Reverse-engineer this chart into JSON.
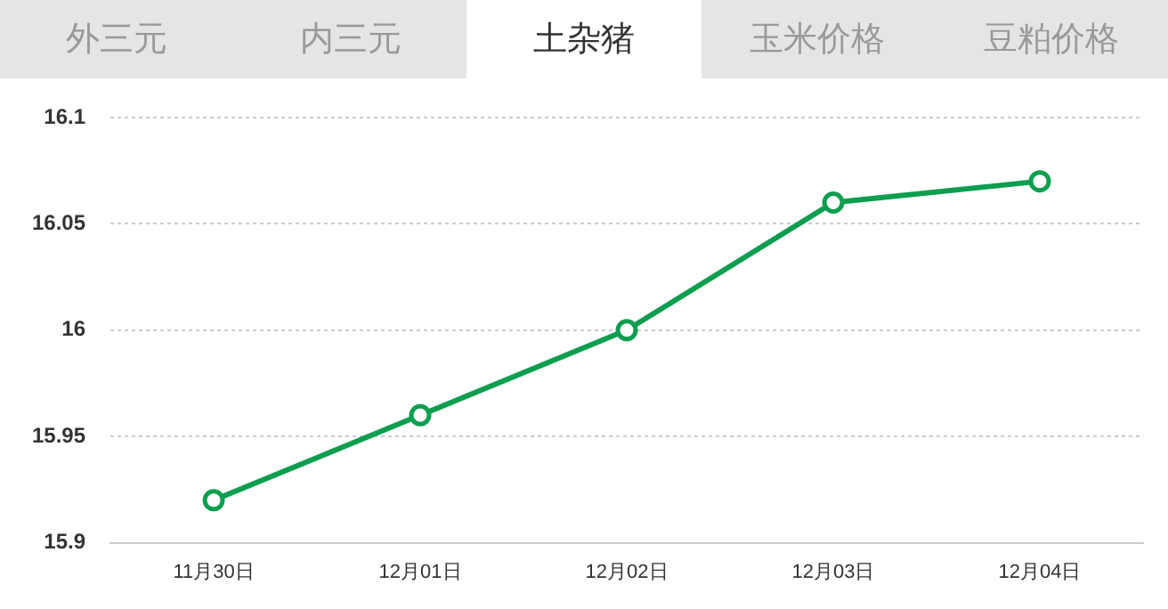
{
  "chart_data": {
    "type": "line",
    "title": "土杂猪",
    "annotations": [
      "外三元",
      "内三元",
      "玉米价格",
      "豆粕价格"
    ],
    "categories": [
      "11月30日",
      "12月01日",
      "12月02日",
      "12月03日",
      "12月04日"
    ],
    "series": [
      {
        "color": "#0d9e4f",
        "values": [
          15.92,
          15.96,
          16.0,
          16.06,
          16.07
        ]
      }
    ],
    "ylim": [
      15.9,
      16.1
    ],
    "yticks": [
      15.9,
      15.95,
      16,
      16.05,
      16.1
    ],
    "grid": "y",
    "legend": false,
    "marker": "circle",
    "line_style": "solid"
  }
}
